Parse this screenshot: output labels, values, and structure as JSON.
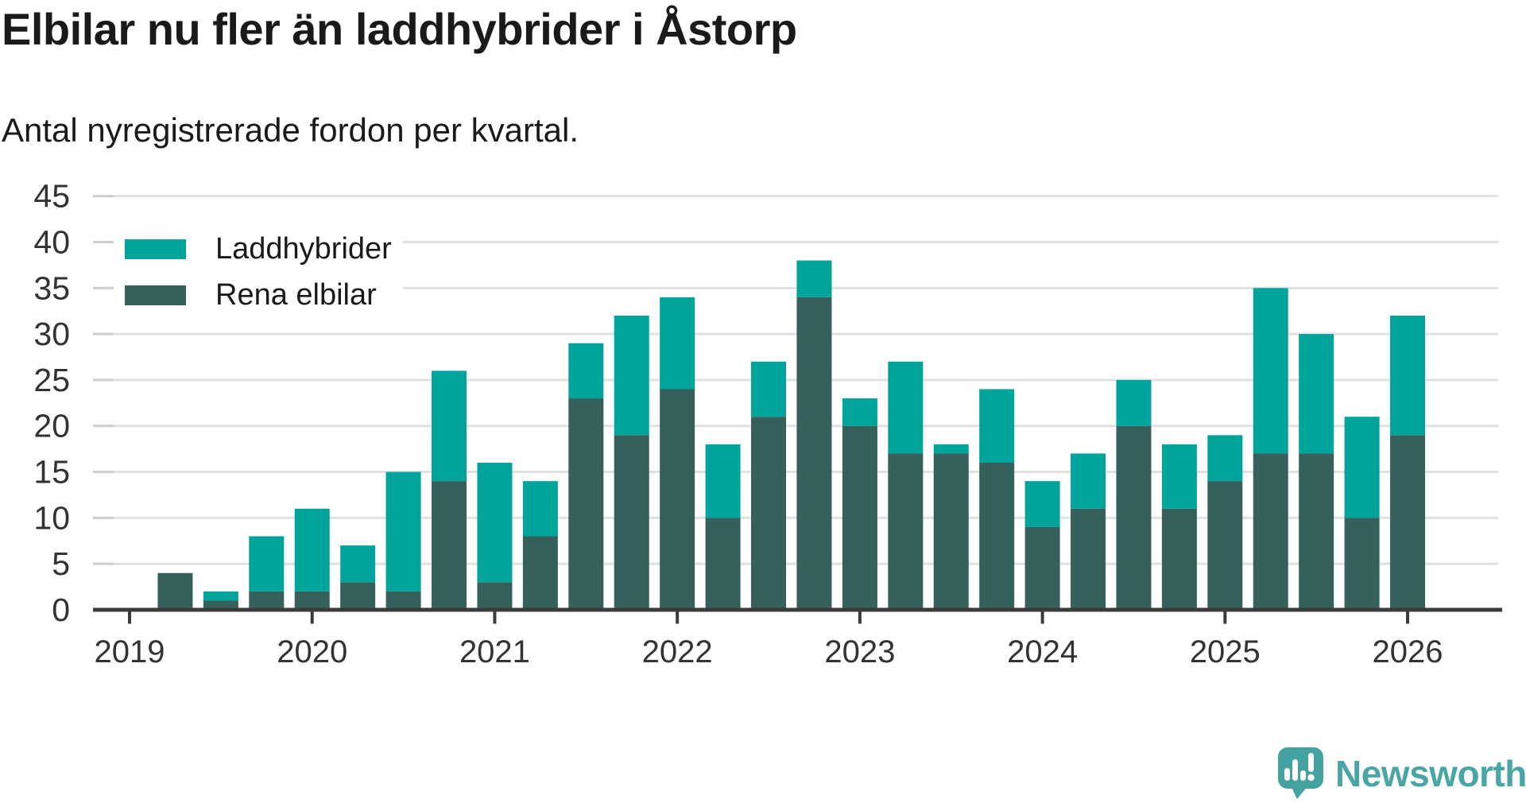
{
  "title": "Elbilar nu fler än laddhybrider i Åstorp",
  "subtitle": "Antal nyregistrerade fordon per kvartal.",
  "legend": {
    "items": [
      {
        "label": "Laddhybrider",
        "color": "#00a49b"
      },
      {
        "label": "Rena elbilar",
        "color": "#35605c"
      }
    ]
  },
  "branding": {
    "name": "Newsworthy",
    "mark_color": "#44a2a0",
    "text_color": "#4aa6a4"
  },
  "colors": {
    "background": "#ffffff",
    "grid": "#e0e0e0",
    "grid_stub": "#cfcfcf",
    "axis": "#3b3b3b",
    "axis_text": "#333333",
    "text": "#1a1a1a"
  },
  "chart_data": {
    "type": "bar",
    "stacked": true,
    "title": "Elbilar nu fler än laddhybrider i Åstorp",
    "subtitle": "Antal nyregistrerade fordon per kvartal.",
    "categories": [
      "2019 Q1",
      "2019 Q2",
      "2019 Q3",
      "2019 Q4",
      "2020 Q1",
      "2020 Q2",
      "2020 Q3",
      "2020 Q4",
      "2021 Q1",
      "2021 Q2",
      "2021 Q3",
      "2021 Q4",
      "2022 Q1",
      "2022 Q2",
      "2022 Q3",
      "2022 Q4",
      "2023 Q1",
      "2023 Q2",
      "2023 Q3",
      "2023 Q4",
      "2024 Q1",
      "2024 Q2",
      "2024 Q3",
      "2024 Q4",
      "2025 Q1",
      "2025 Q2",
      "2025 Q3",
      "2025 Q4",
      "2026 Q1"
    ],
    "series": [
      {
        "name": "Rena elbilar",
        "color": "#35605c",
        "values": [
          0,
          4,
          1,
          2,
          2,
          3,
          2,
          14,
          3,
          8,
          23,
          19,
          24,
          10,
          21,
          34,
          20,
          17,
          17,
          16,
          9,
          11,
          20,
          11,
          14,
          17,
          17,
          10,
          19
        ]
      },
      {
        "name": "Laddhybrider",
        "color": "#00a49b",
        "values": [
          0,
          0,
          1,
          6,
          9,
          4,
          13,
          12,
          13,
          6,
          6,
          13,
          10,
          8,
          6,
          4,
          3,
          10,
          1,
          8,
          5,
          6,
          5,
          7,
          5,
          18,
          13,
          11,
          13
        ]
      }
    ],
    "totals": [
      0,
      4,
      2,
      8,
      11,
      7,
      15,
      26,
      16,
      14,
      29,
      32,
      34,
      18,
      27,
      38,
      23,
      27,
      18,
      24,
      14,
      17,
      25,
      18,
      19,
      35,
      30,
      21,
      32
    ],
    "x_tick_labels": [
      "2019",
      "2020",
      "2021",
      "2022",
      "2023",
      "2024",
      "2025",
      "2026"
    ],
    "y_ticks": [
      0,
      5,
      10,
      15,
      20,
      25,
      30,
      35,
      40,
      45
    ],
    "ylim": [
      0,
      45
    ],
    "grid": true,
    "legend_position": "top-left"
  }
}
